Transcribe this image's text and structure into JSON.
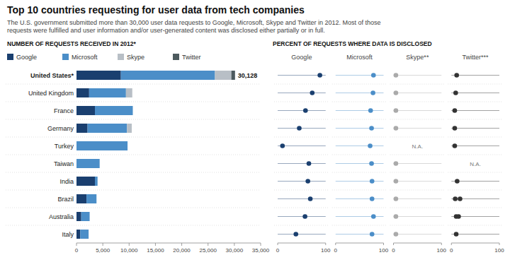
{
  "chart_data": [
    {
      "type": "bar",
      "orientation": "horizontal",
      "stacked": true,
      "title": "Top 10 countries requesting for user data from tech companies",
      "subtitle": "The U.S. government submitted more than 30,000 user data requests to Google, Microsoft, Skype and Twitter in 2012. Most of those\nrequests were fulfilled and user information and/or user-generated content was disclosed either partially or in full.",
      "xlabel": "NUMBER OF REQUESTS RECEIVED IN 2012*",
      "categories": [
        "United States*",
        "United Kingdom",
        "France",
        "Germany",
        "Turkey",
        "Taiwan",
        "India",
        "Brazil",
        "Australia",
        "Italy"
      ],
      "series": [
        {
          "name": "Google",
          "color": "#1a3f6f",
          "values": [
            8438,
            2400,
            3500,
            2100,
            0,
            0,
            3500,
            1900,
            900,
            700
          ]
        },
        {
          "name": "Microsoft",
          "color": "#4b8ec8",
          "values": [
            17877,
            7000,
            7200,
            7500,
            9700,
            4400,
            500,
            1900,
            1600,
            1600
          ]
        },
        {
          "name": "Skype",
          "color": "#b8bfc6",
          "values": [
            3113,
            1200,
            0,
            900,
            0,
            0,
            0,
            0,
            0,
            0
          ]
        },
        {
          "name": "Twitter",
          "color": "#4d5a5e",
          "values": [
            700,
            0,
            0,
            0,
            0,
            0,
            0,
            0,
            0,
            0
          ]
        }
      ],
      "annotations": [
        {
          "text": "30,128",
          "x": 30128,
          "category": "United States*"
        }
      ],
      "xlim": [
        0,
        35000
      ],
      "xticks": [
        0,
        {
          "value": 5000,
          "label": "5,000"
        },
        {
          "value": 10000,
          "label": "10,000"
        },
        {
          "value": 15000,
          "label": "15,000"
        },
        {
          "value": 20000,
          "label": "20,000"
        },
        {
          "value": 25000,
          "label": "25,000"
        },
        {
          "value": 30000,
          "label": "30,000"
        },
        {
          "value": 35000,
          "label": "35,000"
        }
      ],
      "legend": "top"
    },
    {
      "type": "dot",
      "title": "PERCENT OF REQUESTS WHERE DATA IS DISCLOSED",
      "null_label": "N.A.",
      "series": [
        {
          "name": "Google",
          "color": "#1a3f6f",
          "values": [
            88,
            72,
            58,
            45,
            10,
            65,
            63,
            68,
            57,
            38
          ]
        },
        {
          "name": "Microsoft",
          "color": "#4b8ec8",
          "values": [
            79,
            78,
            73,
            75,
            72,
            75,
            76,
            76,
            79,
            76
          ]
        },
        {
          "name": "Skype**",
          "color": "#aaaaaa",
          "values": [
            5,
            5,
            5,
            5,
            null,
            5,
            5,
            5,
            5,
            5
          ]
        },
        {
          "name": "Twitter***",
          "color": "#333333",
          "values": [
            11,
            9,
            7,
            7,
            7,
            null,
            12,
            [
              8,
              18
            ],
            [
              10,
              15
            ],
            10
          ]
        }
      ],
      "xlim": [
        0,
        100
      ],
      "xticks": [
        0,
        100
      ]
    }
  ]
}
